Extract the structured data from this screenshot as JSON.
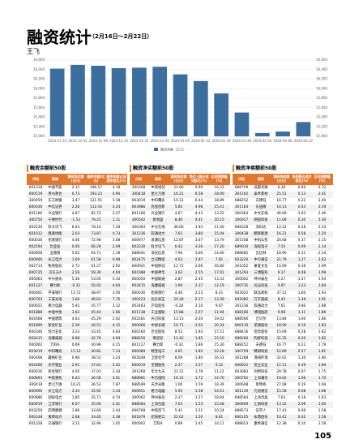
{
  "header": {
    "title": "融资统计",
    "date_range": "（2月16日～2月22日）",
    "author": "王飞"
  },
  "chart_data": {
    "type": "bar",
    "legend": "融资余额（亿元）",
    "color": "#3d6f9e",
    "categories": [
      "2023-11-24",
      "2023-12-01",
      "2023-12-08",
      "2023-12-15",
      "2023-12-22",
      "2023-12-29",
      "2024-01-05",
      "2024-01-12",
      "2024-01-19",
      "2024-01-26",
      "2024-02-02",
      "2024-02-08",
      "2024-02-22"
    ],
    "values": [
      16420,
      16500,
      16480,
      16430,
      16440,
      16460,
      16300,
      16160,
      15900,
      15500,
      15070,
      15100,
      15300
    ],
    "ylim": [
      15000,
      16600
    ],
    "yticks": [
      {
        "value": 15000,
        "label": "15,000"
      },
      {
        "value": 15200,
        "label": "15,200"
      },
      {
        "value": 15400,
        "label": "15,400"
      },
      {
        "value": 15600,
        "label": "15,600"
      },
      {
        "value": 15800,
        "label": "15,800"
      },
      {
        "value": 16000,
        "label": "16,000"
      },
      {
        "value": 16200,
        "label": "16,200"
      },
      {
        "value": 16400,
        "label": "16,400"
      },
      {
        "value": 16600,
        "label": "16,600"
      }
    ],
    "y2lim": [
      15000,
      16600
    ],
    "y2ticks": [
      {
        "value": 15000,
        "label": "15,000"
      },
      {
        "value": 15200,
        "label": "15,200"
      },
      {
        "value": 15400,
        "label": "15,400"
      },
      {
        "value": 15600,
        "label": "15,600"
      },
      {
        "value": 15800,
        "label": "15,800"
      },
      {
        "value": 16000,
        "label": "16,000"
      },
      {
        "value": 16200,
        "label": "16,200"
      },
      {
        "value": 16400,
        "label": "16,400"
      },
      {
        "value": 16600,
        "label": "16,600"
      }
    ],
    "grid": true
  },
  "tables": [
    {
      "title": "融资余额前50股",
      "columns": [
        "代码",
        "简称",
        "期间净买额(亿元)",
        "融资余额(亿元)",
        "融资余额占流通市值比(%)"
      ],
      "rows": [
        [
          "601318",
          "中国平安",
          "2.15",
          "196.57",
          "4.18"
        ],
        [
          "600519",
          "贵州茅台",
          "0.73",
          "193.23",
          "0.90"
        ],
        [
          "300059",
          "东方财富",
          "3.47",
          "121.55",
          "5.58"
        ],
        [
          "600030",
          "中信证券",
          "2.26",
          "112.43",
          "4.24"
        ],
        [
          "601166",
          "兴业银行",
          "4.67",
          "82.72",
          "2.37"
        ],
        [
          "300750",
          "宁德时代",
          "-1.53",
          "79.25",
          "1.11"
        ],
        [
          "002230",
          "科大讯飞",
          "6.43",
          "78.10",
          "7.28"
        ],
        [
          "601012",
          "隆基绿能",
          "2.03",
          "73.87",
          "4.73"
        ],
        [
          "600036",
          "招商银行",
          "4.46",
          "72.98",
          "3.08"
        ],
        [
          "002594",
          "比亚迪",
          "0.00",
          "66.28",
          "2.09"
        ],
        [
          "000858",
          "五粮液",
          "5.62",
          "64.71",
          "1.18"
        ],
        [
          "600900",
          "长江电力",
          "1.69",
          "61.58",
          "0.98"
        ],
        [
          "002714",
          "牧原股份",
          "2.72",
          "61.27",
          "2.92"
        ],
        [
          "000725",
          "京东方A",
          "2.56",
          "59.39",
          "4.04"
        ],
        [
          "000063",
          "中兴通讯",
          "5.36",
          "53.05",
          "5.10"
        ],
        [
          "601127",
          "赛力斯",
          "-0.32",
          "50.02",
          "4.64"
        ],
        [
          "000001",
          "平安银行",
          "12.72",
          "48.97",
          "3.56"
        ],
        [
          "600703",
          "三安光电",
          "1.60",
          "46.63",
          "7.76"
        ],
        [
          "000651",
          "格力电器",
          "5.92",
          "45.77",
          "2.12"
        ],
        [
          "601888",
          "中国中免",
          "3.62",
          "45.44",
          "2.66"
        ],
        [
          "601668",
          "中国建筑",
          "4.63",
          "45.29",
          "2.02"
        ],
        [
          "601899",
          "紫金矿业",
          "2.39",
          "44.51",
          "4.15"
        ],
        [
          "600346",
          "恒力石化",
          "3.23",
          "43.45",
          "4.83"
        ],
        [
          "002415",
          "海康威视",
          "0.88",
          "42.78",
          "4.94"
        ],
        [
          "000002",
          "万科A",
          "0.69",
          "40.99",
          "4.15"
        ],
        [
          "603019",
          "中科曙光",
          "15.12",
          "40.82",
          "7.13"
        ],
        [
          "000408",
          "藏格矿业",
          "0.96",
          "38.53",
          "3.24"
        ],
        [
          "002466",
          "天齐锂业",
          "2.91",
          "37.81",
          "5.42"
        ],
        [
          "600016",
          "民生银行",
          "4.05",
          "37.03",
          "2.34"
        ],
        [
          "600893",
          "中航重机",
          "6.43",
          "36.58",
          "4.01"
        ],
        [
          "300418",
          "昆仑万维",
          "16.21",
          "36.53",
          "7.87"
        ],
        [
          "600900",
          "长江电力",
          "3.34",
          "35.92",
          "1.33"
        ],
        [
          "600886",
          "国投电力",
          "1.85",
          "35.71",
          "4.74"
        ],
        [
          "600919",
          "江苏银行",
          "6.07",
          "35.06",
          "2.41"
        ],
        [
          "603259",
          "药明康德",
          "1.86",
          "33.69",
          "2.43"
        ],
        [
          "000338",
          "潍柴动力",
          "2.68",
          "33.40",
          "2.38"
        ],
        [
          "601328",
          "交通银行",
          "3.12",
          "32.96",
          "1.05"
        ]
      ]
    },
    {
      "title": "融资净买额前50股",
      "columns": [
        "代码",
        "简称",
        "期间净买额(亿元)",
        "净买入额占成交额比(%)",
        "区间涨跌幅(%)"
      ],
      "rows": [
        [
          "300308",
          "中际旭创",
          "21.66",
          "9.90",
          "16.22"
        ],
        [
          "300418",
          "昆仑万维",
          "16.21",
          "6.58",
          "18.00"
        ],
        [
          "603019",
          "中科曙光",
          "15.12",
          "6.44",
          "18.89"
        ],
        [
          "603986",
          "兆易创新",
          "5.85",
          "4.96",
          "15.41"
        ],
        [
          "601166",
          "兴业银行",
          "4.67",
          "4.43",
          "13.25"
        ],
        [
          "300502",
          "新易盛",
          "8.40",
          "4.41",
          "20.15"
        ],
        [
          "300364",
          "中文在线",
          "46.06",
          "3.93",
          "11.00"
        ],
        [
          "301236",
          "软通动力",
          "7.61",
          "3.80",
          "15.04"
        ],
        [
          "000977",
          "浪潮信息",
          "12.87",
          "3.67",
          "13.79"
        ],
        [
          "002230",
          "科大讯飞",
          "6.43",
          "3.26",
          "17.20"
        ],
        [
          "688041",
          "海光信息",
          "7.96",
          "3.00",
          "14.60"
        ],
        [
          "002475",
          "立讯精密",
          "4.63",
          "2.97",
          "7.81"
        ],
        [
          "600941",
          "中国移动",
          "12.72",
          "2.66",
          "16.80"
        ],
        [
          "601088",
          "中国神华",
          "3.62",
          "2.55",
          "17.01"
        ],
        [
          "600050",
          "中国联通",
          "2.87",
          "2.45",
          "13.33"
        ],
        [
          "002415",
          "海康威视",
          "1.99",
          "2.37",
          "12.19"
        ],
        [
          "600036",
          "招商银行",
          "4.46",
          "2.23",
          "8.21"
        ],
        [
          "300223",
          "北京君正",
          "20.28",
          "2.17",
          "13.30"
        ],
        [
          "002463",
          "沪电股份",
          "-0.28",
          "2.10",
          "9.67"
        ],
        [
          "601138",
          "工业富联",
          "15.86",
          "2.07",
          "11.94"
        ],
        [
          "002281",
          "光迅科技",
          "13.13",
          "2.04",
          "19.42"
        ],
        [
          "000066",
          "中国长城",
          "10.71",
          "2.02",
          "20.34"
        ],
        [
          "600160",
          "巨化股份",
          "8.52",
          "1.93",
          "17.21"
        ],
        [
          "688256",
          "寒武纪",
          "11.42",
          "1.85",
          "23.10"
        ],
        [
          "601127",
          "赛力斯",
          "-0.32",
          "1.86",
          "15.30"
        ],
        [
          "600089",
          "特变电工",
          "4.61",
          "1.85",
          "10.18"
        ],
        [
          "002648",
          "卫星化学",
          "8.09",
          "1.80",
          "16.33"
        ],
        [
          "600019",
          "宝钢股份",
          "2.27",
          "1.57",
          "9.12"
        ],
        [
          "301269",
          "华大九天",
          "21.21",
          "1.76",
          "11.21"
        ],
        [
          "688981",
          "中芯国际",
          "16.31",
          "1.72",
          "14.70"
        ],
        [
          "688599",
          "天合光能",
          "1.00",
          "1.59",
          "18.39"
        ],
        [
          "000651",
          "格力电器",
          "5.92",
          "1.58",
          "14.41"
        ],
        [
          "300002",
          "神州泰岳",
          "2.27",
          "1.57",
          "18.84"
        ],
        [
          "688584",
          "上海合晶",
          "7.63",
          "1.53",
          "15.48"
        ],
        [
          "000768",
          "中航西飞",
          "5.41",
          "1.51",
          "10.24"
        ],
        [
          "001979",
          "招商蛇口",
          "22.02",
          "1.50",
          "8.81"
        ],
        [
          "000002",
          "万科A",
          "0.89",
          "1.45",
          "14.11"
        ]
      ]
    },
    {
      "title": "融资净卖额前50股",
      "columns": [
        "代码",
        "简称",
        "期间净卖额(亿元)",
        "净卖额占成交额比(%)",
        "区间涨跌幅(%)"
      ],
      "rows": [
        [
          "688709",
          "成都华微",
          "6.39",
          "0.60",
          "3.72"
        ],
        [
          "301192",
          "泰禾新材",
          "25.51",
          "0.13",
          "3.41"
        ],
        [
          "688252",
          "天德钰",
          "16.77",
          "0.22",
          "3.40"
        ],
        [
          "301183",
          "东田微",
          "14.13",
          "0.43",
          "3.19"
        ],
        [
          "300364",
          "中文在线",
          "46.06",
          "3.93",
          "2.46"
        ],
        [
          "300017",
          "网宿科技",
          "11.69",
          "0.30",
          "2.30"
        ],
        [
          "688328",
          "深科达",
          "12.22",
          "0.28",
          "2.24"
        ],
        [
          "300438",
          "鹏辉能源",
          "16.21",
          "0.58",
          "2.20"
        ],
        [
          "301508",
          "中机认检",
          "20.68",
          "0.37",
          "2.15"
        ],
        [
          "689010",
          "海程电子",
          "7.55",
          "0.09",
          "2.14"
        ],
        [
          "688685",
          "迈信林",
          "18.90",
          "0.31",
          "2.14"
        ],
        [
          "603220",
          "中贝通信",
          "21.79",
          "1.27",
          "2.02"
        ],
        [
          "301052",
          "果麦文化",
          "15.09",
          "0.36",
          "1.99"
        ],
        [
          "301293",
          "三博脑科",
          "9.17",
          "0.48",
          "1.99"
        ],
        [
          "300002",
          "神州泰岳",
          "2.27",
          "1.57",
          "1.93"
        ],
        [
          "300735",
          "光弘科技",
          "9.97",
          "1.23",
          "1.84"
        ],
        [
          "003022",
          "联泓新科",
          "37.12",
          "1.60",
          "1.93"
        ],
        [
          "002085",
          "万丰奥威",
          "8.43",
          "1.39",
          "1.91"
        ],
        [
          "301236",
          "软通动力",
          "7.61",
          "3.80",
          "1.88"
        ],
        [
          "688166",
          "博瑞医药",
          "9.98",
          "1.31",
          "1.86"
        ],
        [
          "688566",
          "吉贝尔",
          "13.84",
          "1.60",
          "1.86"
        ],
        [
          "600110",
          "诺德股份",
          "18.90",
          "0.19",
          "1.83"
        ],
        [
          "688416",
          "恒烁股份",
          "15.09",
          "0.28",
          "1.82"
        ],
        [
          "688260",
          "昀冢科技",
          "31.25",
          "0.20",
          "1.82"
        ],
        [
          "688252",
          "天德钰",
          "16.77",
          "0.22",
          "1.79"
        ],
        [
          "300709",
          "精研科技",
          "12.89",
          "0.57",
          "1.81"
        ],
        [
          "301288",
          "清研环境",
          "32.02",
          "1.30",
          "1.80"
        ],
        [
          "000622",
          "恒立实业",
          "11.11",
          "0.39",
          "1.80"
        ],
        [
          "603083",
          "剑桥科技",
          "29.78",
          "0.07",
          "1.75"
        ],
        [
          "300762",
          "上海瀚讯",
          "19.02",
          "1.06",
          "1.70"
        ],
        [
          "300608",
          "思特奇",
          "27.08",
          "0.19",
          "1.69"
        ],
        [
          "301139",
          "元道通信",
          "15.58",
          "0.08",
          "1.66"
        ],
        [
          "688584",
          "上海合晶",
          "7.63",
          "0.18",
          "1.63"
        ],
        [
          "300609",
          "汇纳科技",
          "13.12",
          "2.06",
          "1.60"
        ],
        [
          "688573",
          "信宇人",
          "17.43",
          "0.06",
          "1.58"
        ],
        [
          "600105",
          "永鼎股份",
          "10.41",
          "0.42",
          "1.58"
        ],
        [
          "688653",
          "康希通信",
          "12.38",
          "0.10",
          "1.58"
        ]
      ]
    }
  ],
  "page_number": "105"
}
